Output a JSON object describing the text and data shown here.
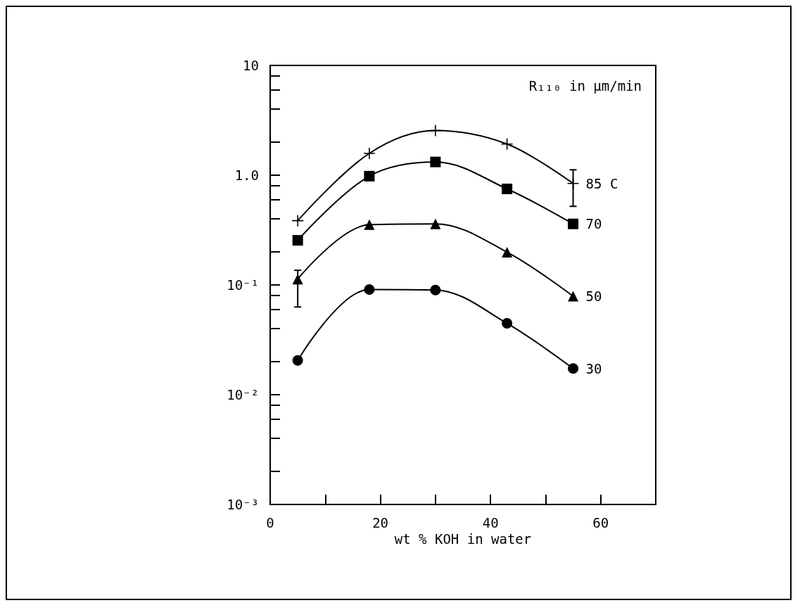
{
  "chart_data": {
    "type": "line",
    "xlabel": "wt % KOH in water",
    "annotations": [
      "R₁₁₀ in μm/min"
    ],
    "x": [
      5,
      18,
      30,
      43,
      55
    ],
    "series": [
      {
        "name": "85 C",
        "color": "#000000",
        "marker": "cross",
        "values": [
          0.385,
          1.58,
          2.55,
          1.92,
          0.84
        ],
        "errors": [
          null,
          null,
          null,
          null,
          [
            0.52,
            1.12
          ]
        ]
      },
      {
        "name": "70",
        "color": "#000000",
        "marker": "square",
        "values": [
          0.255,
          0.98,
          1.32,
          0.75,
          0.36
        ]
      },
      {
        "name": "50",
        "color": "#000000",
        "marker": "triangle",
        "values": [
          0.113,
          0.354,
          0.36,
          0.199,
          0.079
        ],
        "errors": [
          [
            0.063,
            0.136
          ],
          null,
          null,
          null,
          null
        ]
      },
      {
        "name": "30",
        "color": "#000000",
        "marker": "circle",
        "values": [
          0.0205,
          0.091,
          0.09,
          0.0447,
          0.0173
        ]
      }
    ],
    "xlim": [
      0,
      70
    ],
    "xticks": [
      0,
      {
        "value": 10,
        "label": null
      },
      20,
      {
        "value": 30,
        "label": null
      },
      40,
      {
        "value": 50,
        "label": null
      },
      60
    ],
    "ylim": [
      0.001,
      10
    ],
    "yticks": [
      {
        "value": 0.001,
        "label": "10⁻³"
      },
      {
        "value": 0.002,
        "label": null
      },
      {
        "value": 0.004,
        "label": null
      },
      {
        "value": 0.006,
        "label": null
      },
      {
        "value": 0.008,
        "label": null
      },
      {
        "value": 0.01,
        "label": "10⁻²"
      },
      {
        "value": 0.02,
        "label": null
      },
      {
        "value": 0.04,
        "label": null
      },
      {
        "value": 0.06,
        "label": null
      },
      {
        "value": 0.08,
        "label": null
      },
      {
        "value": 0.1,
        "label": "10⁻¹"
      },
      {
        "value": 0.2,
        "label": null
      },
      {
        "value": 0.4,
        "label": null
      },
      {
        "value": 0.6,
        "label": null
      },
      {
        "value": 0.8,
        "label": null
      },
      {
        "value": 1,
        "label": "1.0"
      },
      {
        "value": 2,
        "label": null
      },
      {
        "value": 4,
        "label": null
      },
      {
        "value": 6,
        "label": null
      },
      {
        "value": 8,
        "label": null
      },
      10
    ],
    "log": "y",
    "grid": false
  }
}
